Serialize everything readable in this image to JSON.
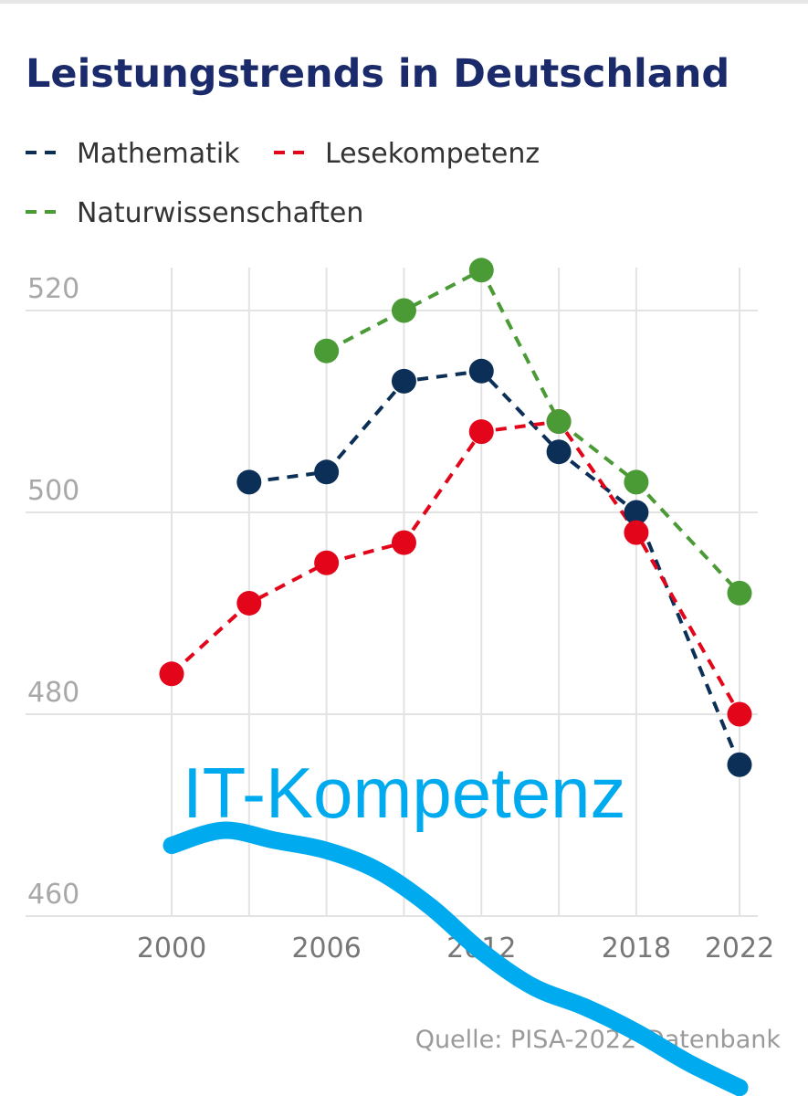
{
  "chart_data": {
    "type": "line",
    "title": "Leistungstrends in Deutschland",
    "xlabel": "",
    "ylabel": "",
    "x_ticks": [
      2000,
      2006,
      2012,
      2018,
      2022
    ],
    "y_ticks": [
      460,
      480,
      500,
      520
    ],
    "xlim": [
      2000,
      2022
    ],
    "ylim": [
      460,
      520
    ],
    "grid": true,
    "legend_position": "top-left",
    "line_style": "dashed",
    "series": [
      {
        "name": "Mathematik",
        "color": "#0b2f57",
        "x": [
          2003,
          2006,
          2009,
          2012,
          2015,
          2018,
          2022
        ],
        "y": [
          503,
          504,
          513,
          514,
          506,
          500,
          475
        ]
      },
      {
        "name": "Lesekompetenz",
        "color": "#e3061b",
        "x": [
          2000,
          2003,
          2006,
          2009,
          2012,
          2015,
          2018,
          2022
        ],
        "y": [
          484,
          491,
          495,
          497,
          508,
          509,
          498,
          480
        ]
      },
      {
        "name": "Naturwissenschaften",
        "color": "#4a9a35",
        "x": [
          2006,
          2009,
          2012,
          2015,
          2018,
          2022
        ],
        "y": [
          516,
          520,
          524,
          509,
          503,
          492
        ]
      }
    ],
    "source": "Quelle: PISA-2022-Datenbank",
    "annotation": {
      "text": "IT-Kompetenz",
      "color": "#00aaee",
      "curve": {
        "x": [
          2000,
          2002,
          2004,
          2006,
          2008,
          2010,
          2012,
          2014,
          2016,
          2018,
          2020,
          2022
        ],
        "y": [
          467,
          468.5,
          467.5,
          466.5,
          464.5,
          461,
          456.5,
          453,
          451,
          448.5,
          445.5,
          443
        ]
      }
    }
  }
}
